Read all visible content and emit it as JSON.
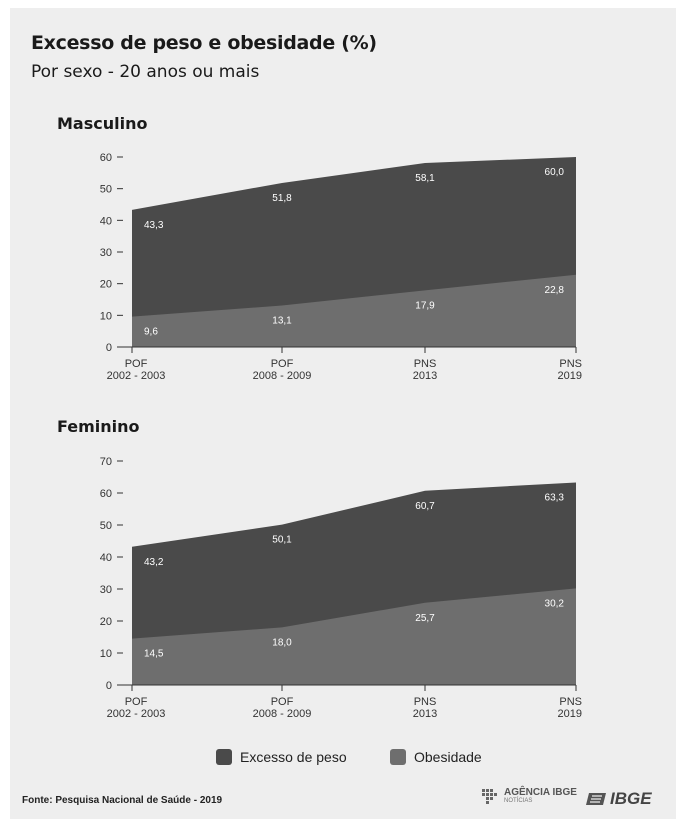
{
  "title": "Excesso de peso e obesidade  (%)",
  "subtitle": "Por sexo - 20 anos ou mais",
  "colors": {
    "excesso": "#4a4a4a",
    "obesidade": "#6e6e6e",
    "background": "#eeeeee"
  },
  "legend": {
    "excesso": "Excesso de peso",
    "obesidade": "Obesidade"
  },
  "footer": {
    "source": "Fonte: Pesquisa Nacional de Saúde - 2019"
  },
  "logos": {
    "agencia_main": "AGÊNCIA IBGE",
    "agencia_sub": "NOTÍCIAS",
    "ibge": "IBGE"
  },
  "chart_data": [
    {
      "type": "area",
      "title": "Masculino",
      "categories": [
        [
          "POF",
          "2002 - 2003"
        ],
        [
          "POF",
          "2008 - 2009"
        ],
        [
          "PNS",
          "2013"
        ],
        [
          "PNS",
          "2019"
        ]
      ],
      "series": [
        {
          "name": "Excesso de peso",
          "values": [
            43.3,
            51.8,
            58.1,
            60.0
          ],
          "labels": [
            "43,3",
            "51,8",
            "58,1",
            "60,0"
          ]
        },
        {
          "name": "Obesidade",
          "values": [
            9.6,
            13.1,
            17.9,
            22.8
          ],
          "labels": [
            "9,6",
            "13,1",
            "17,9",
            "22,8"
          ]
        }
      ],
      "yticks": [
        0,
        10,
        20,
        30,
        40,
        50,
        60
      ],
      "ylim": [
        0,
        60
      ],
      "grid": false
    },
    {
      "type": "area",
      "title": "Feminino",
      "categories": [
        [
          "POF",
          "2002 - 2003"
        ],
        [
          "POF",
          "2008 - 2009"
        ],
        [
          "PNS",
          "2013"
        ],
        [
          "PNS",
          "2019"
        ]
      ],
      "series": [
        {
          "name": "Excesso de peso",
          "values": [
            43.2,
            50.1,
            60.7,
            63.3
          ],
          "labels": [
            "43,2",
            "50,1",
            "60,7",
            "63,3"
          ]
        },
        {
          "name": "Obesidade",
          "values": [
            14.5,
            18.0,
            25.7,
            30.2
          ],
          "labels": [
            "14,5",
            "18,0",
            "25,7",
            "30,2"
          ]
        }
      ],
      "yticks": [
        0,
        10,
        20,
        30,
        40,
        50,
        60,
        70
      ],
      "ylim": [
        0,
        70
      ],
      "grid": false
    }
  ]
}
